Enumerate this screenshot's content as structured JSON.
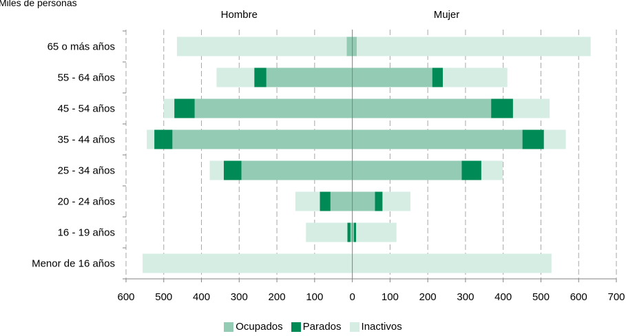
{
  "chart_data": {
    "type": "bar",
    "orientation": "horizontal",
    "layout": "population-pyramid",
    "unit_label": "Miles de personas",
    "side_labels": {
      "left": "Hombre",
      "right": "Mujer"
    },
    "categories": [
      "65 o más años",
      "55 - 64 años",
      "45 - 54 años",
      "35 - 44 años",
      "25 - 34 años",
      "20 - 24 años",
      "16 - 19 años",
      "Menor de 16 años"
    ],
    "series": [
      {
        "name": "Ocupados",
        "color": "#93cbb4",
        "hombre": [
          15,
          228,
          418,
          477,
          294,
          58,
          5,
          0
        ],
        "mujer": [
          12,
          212,
          368,
          451,
          290,
          60,
          4,
          0
        ]
      },
      {
        "name": "Parados",
        "color": "#008a56",
        "hombre": [
          0,
          32,
          54,
          48,
          47,
          28,
          8,
          0
        ],
        "mujer": [
          0,
          28,
          58,
          57,
          52,
          20,
          6,
          0
        ]
      },
      {
        "name": "Inactivos",
        "color": "#d6ede3",
        "hombre": [
          450,
          100,
          28,
          20,
          37,
          65,
          110,
          556
        ],
        "mujer": [
          620,
          171,
          97,
          58,
          57,
          74,
          107,
          528
        ]
      }
    ],
    "x_axis": {
      "min": -600,
      "max": 700,
      "ticks": [
        -600,
        -500,
        -400,
        -300,
        -200,
        -100,
        0,
        100,
        200,
        300,
        400,
        500,
        600,
        700
      ],
      "tick_labels": [
        "600",
        "500",
        "400",
        "300",
        "200",
        "100",
        "0",
        "100",
        "200",
        "300",
        "400",
        "500",
        "600",
        "700"
      ]
    },
    "grid": "vertical dashed",
    "legend_position": "bottom"
  }
}
